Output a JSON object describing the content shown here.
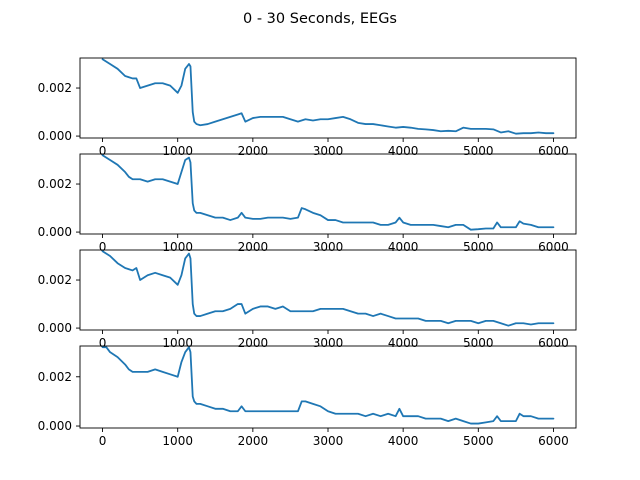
{
  "figure": {
    "title": "0 - 30 Seconds, EEGs"
  },
  "chart_data": [
    {
      "type": "line",
      "color": "#1f77b4",
      "xlim": [
        -300,
        6300
      ],
      "ylim": [
        -8e-05,
        0.00325
      ],
      "xticks": [
        0,
        1000,
        2000,
        3000,
        4000,
        5000,
        6000
      ],
      "xtick_labels": [
        "0",
        "1000",
        "2000",
        "3000",
        "4000",
        "5000",
        "6000"
      ],
      "yticks": [
        0.0,
        0.002
      ],
      "ytick_labels": [
        "0.000",
        "0.002"
      ],
      "x": [
        0,
        100,
        200,
        300,
        400,
        450,
        500,
        600,
        700,
        800,
        900,
        1000,
        1050,
        1100,
        1150,
        1170,
        1200,
        1220,
        1250,
        1300,
        1400,
        1500,
        1600,
        1700,
        1800,
        1850,
        1900,
        2000,
        2100,
        2200,
        2300,
        2400,
        2500,
        2600,
        2700,
        2800,
        2900,
        3000,
        3100,
        3200,
        3300,
        3400,
        3500,
        3600,
        3700,
        3800,
        3900,
        4000,
        4100,
        4200,
        4300,
        4400,
        4500,
        4600,
        4700,
        4800,
        4900,
        5000,
        5100,
        5200,
        5300,
        5400,
        5500,
        5600,
        5700,
        5800,
        5900,
        6000
      ],
      "y": [
        0.0032,
        0.003,
        0.0028,
        0.0025,
        0.0024,
        0.0024,
        0.002,
        0.0021,
        0.0022,
        0.0022,
        0.0021,
        0.0018,
        0.0021,
        0.0028,
        0.003,
        0.0029,
        0.001,
        0.0006,
        0.0005,
        0.00045,
        0.0005,
        0.0006,
        0.0007,
        0.0008,
        0.0009,
        0.00095,
        0.0006,
        0.00075,
        0.0008,
        0.0008,
        0.0008,
        0.0008,
        0.0007,
        0.0006,
        0.0007,
        0.00065,
        0.0007,
        0.0007,
        0.00075,
        0.0008,
        0.0007,
        0.00055,
        0.0005,
        0.0005,
        0.00045,
        0.0004,
        0.00035,
        0.00038,
        0.00035,
        0.0003,
        0.00028,
        0.00025,
        0.0002,
        0.00022,
        0.0002,
        0.00035,
        0.0003,
        0.0003,
        0.0003,
        0.00028,
        0.00015,
        0.0002,
        0.0001,
        0.00012,
        0.00012,
        0.00015,
        0.00012,
        0.00012
      ]
    },
    {
      "type": "line",
      "color": "#1f77b4",
      "xlim": [
        -300,
        6300
      ],
      "ylim": [
        -8e-05,
        0.00325
      ],
      "xticks": [
        0,
        1000,
        2000,
        3000,
        4000,
        5000,
        6000
      ],
      "xtick_labels": [
        "0",
        "1000",
        "2000",
        "3000",
        "4000",
        "5000",
        "6000"
      ],
      "yticks": [
        0.0,
        0.002
      ],
      "ytick_labels": [
        "0.000",
        "0.002"
      ],
      "x": [
        0,
        100,
        200,
        300,
        350,
        400,
        500,
        600,
        700,
        800,
        900,
        1000,
        1050,
        1100,
        1150,
        1170,
        1200,
        1220,
        1250,
        1300,
        1400,
        1500,
        1600,
        1700,
        1800,
        1850,
        1900,
        2000,
        2100,
        2200,
        2300,
        2400,
        2500,
        2600,
        2650,
        2700,
        2800,
        2900,
        3000,
        3100,
        3200,
        3300,
        3400,
        3500,
        3600,
        3700,
        3800,
        3900,
        3950,
        4000,
        4100,
        4200,
        4300,
        4400,
        4500,
        4600,
        4700,
        4800,
        4900,
        5000,
        5100,
        5200,
        5250,
        5300,
        5400,
        5500,
        5550,
        5600,
        5700,
        5800,
        5900,
        6000
      ],
      "y": [
        0.0032,
        0.003,
        0.0028,
        0.0025,
        0.0023,
        0.0022,
        0.0022,
        0.0021,
        0.0022,
        0.0022,
        0.0021,
        0.002,
        0.0025,
        0.003,
        0.0031,
        0.0029,
        0.0012,
        0.0009,
        0.0008,
        0.0008,
        0.0007,
        0.0006,
        0.0006,
        0.0005,
        0.0006,
        0.0008,
        0.0006,
        0.00055,
        0.00055,
        0.0006,
        0.0006,
        0.0006,
        0.00055,
        0.0006,
        0.001,
        0.00095,
        0.0008,
        0.0007,
        0.0005,
        0.0005,
        0.0004,
        0.0004,
        0.0004,
        0.0004,
        0.0004,
        0.0003,
        0.0003,
        0.0004,
        0.0006,
        0.0004,
        0.0003,
        0.0003,
        0.0003,
        0.0003,
        0.00025,
        0.0002,
        0.0003,
        0.0003,
        0.0001,
        0.00012,
        0.00015,
        0.00015,
        0.0004,
        0.0002,
        0.0002,
        0.0002,
        0.00045,
        0.00035,
        0.0003,
        0.0002,
        0.0002,
        0.0002
      ]
    },
    {
      "type": "line",
      "color": "#1f77b4",
      "xlim": [
        -300,
        6300
      ],
      "ylim": [
        -8e-05,
        0.00325
      ],
      "xticks": [
        0,
        1000,
        2000,
        3000,
        4000,
        5000,
        6000
      ],
      "xtick_labels": [
        "0",
        "1000",
        "2000",
        "3000",
        "4000",
        "5000",
        "6000"
      ],
      "yticks": [
        0.0,
        0.002
      ],
      "ytick_labels": [
        "0.000",
        "0.002"
      ],
      "x": [
        0,
        100,
        200,
        300,
        400,
        450,
        500,
        600,
        700,
        800,
        900,
        1000,
        1050,
        1100,
        1150,
        1170,
        1200,
        1220,
        1250,
        1300,
        1400,
        1500,
        1600,
        1700,
        1800,
        1850,
        1900,
        2000,
        2100,
        2200,
        2300,
        2400,
        2500,
        2600,
        2700,
        2800,
        2900,
        3000,
        3100,
        3200,
        3300,
        3400,
        3500,
        3600,
        3700,
        3800,
        3900,
        4000,
        4100,
        4200,
        4300,
        4400,
        4500,
        4600,
        4700,
        4800,
        4900,
        5000,
        5100,
        5200,
        5300,
        5400,
        5500,
        5600,
        5700,
        5800,
        5900,
        6000
      ],
      "y": [
        0.0032,
        0.003,
        0.0027,
        0.0025,
        0.0024,
        0.0025,
        0.002,
        0.0022,
        0.0023,
        0.0022,
        0.0021,
        0.0018,
        0.0022,
        0.0029,
        0.0031,
        0.0029,
        0.001,
        0.0006,
        0.0005,
        0.0005,
        0.0006,
        0.0007,
        0.0007,
        0.0008,
        0.001,
        0.001,
        0.0006,
        0.0008,
        0.0009,
        0.0009,
        0.0008,
        0.0009,
        0.0007,
        0.0007,
        0.0007,
        0.0007,
        0.0008,
        0.0008,
        0.0008,
        0.0008,
        0.0007,
        0.0006,
        0.0006,
        0.0005,
        0.0006,
        0.0005,
        0.0004,
        0.0004,
        0.0004,
        0.0004,
        0.0003,
        0.0003,
        0.0003,
        0.0002,
        0.0003,
        0.0003,
        0.0003,
        0.0002,
        0.0003,
        0.0003,
        0.0002,
        0.0001,
        0.0002,
        0.0002,
        0.00015,
        0.0002,
        0.0002,
        0.0002
      ]
    },
    {
      "type": "line",
      "color": "#1f77b4",
      "xlim": [
        -300,
        6300
      ],
      "ylim": [
        -8e-05,
        0.00325
      ],
      "xticks": [
        0,
        1000,
        2000,
        3000,
        4000,
        5000,
        6000
      ],
      "xtick_labels": [
        "0",
        "1000",
        "2000",
        "3000",
        "4000",
        "5000",
        "6000"
      ],
      "yticks": [
        0.0,
        0.002
      ],
      "ytick_labels": [
        "0.000",
        "0.002"
      ],
      "x": [
        0,
        50,
        100,
        200,
        300,
        350,
        400,
        500,
        600,
        700,
        800,
        900,
        1000,
        1050,
        1100,
        1150,
        1170,
        1200,
        1220,
        1250,
        1300,
        1400,
        1500,
        1600,
        1700,
        1800,
        1850,
        1900,
        2000,
        2100,
        2200,
        2300,
        2400,
        2500,
        2600,
        2650,
        2700,
        2800,
        2900,
        3000,
        3100,
        3200,
        3300,
        3400,
        3500,
        3600,
        3700,
        3800,
        3900,
        3950,
        4000,
        4100,
        4200,
        4300,
        4400,
        4500,
        4600,
        4700,
        4800,
        4900,
        5000,
        5100,
        5200,
        5250,
        5300,
        5400,
        5500,
        5550,
        5600,
        5700,
        5800,
        5900,
        6000
      ],
      "y": [
        0.0032,
        0.0032,
        0.003,
        0.0028,
        0.0025,
        0.0023,
        0.0022,
        0.0022,
        0.0022,
        0.0023,
        0.0022,
        0.0021,
        0.002,
        0.0026,
        0.003,
        0.0032,
        0.003,
        0.0012,
        0.001,
        0.0009,
        0.0009,
        0.0008,
        0.0007,
        0.0007,
        0.0006,
        0.0006,
        0.0008,
        0.0006,
        0.0006,
        0.0006,
        0.0006,
        0.0006,
        0.0006,
        0.0006,
        0.0006,
        0.001,
        0.001,
        0.0009,
        0.0008,
        0.0006,
        0.0005,
        0.0005,
        0.0005,
        0.0005,
        0.0004,
        0.0005,
        0.0004,
        0.0005,
        0.0004,
        0.0007,
        0.0004,
        0.0004,
        0.0004,
        0.0003,
        0.0003,
        0.0003,
        0.0002,
        0.0003,
        0.0002,
        0.0001,
        0.0001,
        0.00015,
        0.0002,
        0.0004,
        0.0002,
        0.0002,
        0.0002,
        0.0005,
        0.0004,
        0.0004,
        0.0003,
        0.0003,
        0.0003
      ]
    }
  ]
}
